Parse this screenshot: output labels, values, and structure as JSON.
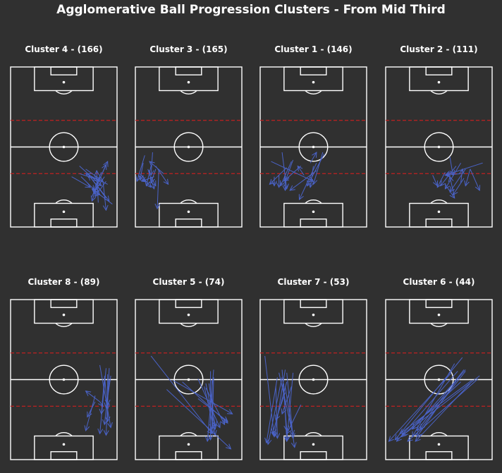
{
  "title": "Agglomerative Ball Progression Clusters - From Mid Third",
  "colors": {
    "background": "#303030",
    "pitch_lines": "#ffffff",
    "third_lines": "#b22222",
    "arrows": "#4a63c8"
  },
  "chart_data": {
    "type": "pitch-arrow-clusters",
    "note_units": "pitch coordinates: x across width 0-68, y along length 0-105 (0 = bottom goal line, 105 = top goal line)",
    "panels": [
      {
        "title": "Cluster 4 - (166)",
        "arrows": [
          [
            52,
            20,
            62,
            43
          ],
          [
            45,
            33,
            57,
            21
          ],
          [
            61,
            30,
            54,
            20
          ],
          [
            58,
            36,
            53,
            24
          ],
          [
            57,
            33,
            52,
            17
          ],
          [
            60,
            33,
            53,
            22
          ],
          [
            39,
            33,
            51,
            26
          ],
          [
            50,
            34,
            63,
            17
          ],
          [
            48,
            38,
            59,
            30
          ],
          [
            62,
            28,
            48,
            35
          ],
          [
            44,
            35,
            56,
            31
          ],
          [
            59,
            30,
            61,
            11
          ],
          [
            44,
            40,
            58,
            27
          ],
          [
            61,
            19,
            50,
            34
          ],
          [
            56,
            16,
            55,
            37
          ],
          [
            65,
            15,
            52,
            25
          ],
          [
            58,
            34,
            61,
            41
          ]
        ]
      },
      {
        "title": "Cluster 3 - (165)",
        "arrows": [
          [
            13,
            38,
            10,
            29
          ],
          [
            15,
            38,
            14,
            12
          ],
          [
            12,
            33,
            4,
            30
          ],
          [
            6,
            47,
            1,
            30
          ],
          [
            3,
            35,
            10,
            26
          ],
          [
            11,
            49,
            10,
            34
          ],
          [
            13,
            40,
            21,
            28
          ],
          [
            10,
            33,
            13,
            27
          ],
          [
            18,
            35,
            9,
            43
          ],
          [
            8,
            38,
            12,
            25
          ],
          [
            2,
            34,
            6,
            30
          ],
          [
            5,
            42,
            3,
            31
          ],
          [
            10,
            40,
            7,
            27
          ]
        ]
      },
      {
        "title": "Cluster 1 - (146)",
        "arrows": [
          [
            14,
            49,
            17,
            25
          ],
          [
            17,
            39,
            6,
            28
          ],
          [
            20,
            43,
            13,
            27
          ],
          [
            36,
            37,
            19,
            24
          ],
          [
            32,
            42,
            36,
            49
          ],
          [
            40,
            49,
            34,
            28
          ],
          [
            26,
            40,
            15,
            30
          ],
          [
            12,
            34,
            12,
            26
          ],
          [
            21,
            44,
            16,
            30
          ],
          [
            41,
            48,
            30,
            27
          ],
          [
            34,
            40,
            32,
            26
          ],
          [
            9,
            33,
            9,
            27
          ],
          [
            16,
            32,
            16,
            24
          ],
          [
            7,
            43,
            34,
            30
          ],
          [
            28,
            34,
            24,
            40
          ],
          [
            36,
            42,
            25,
            18
          ]
        ]
      },
      {
        "title": "Cluster 2 - (111)",
        "arrows": [
          [
            62,
            42,
            38,
            34
          ],
          [
            48,
            42,
            38,
            25
          ],
          [
            51,
            38,
            41,
            23
          ],
          [
            38,
            36,
            33,
            26
          ],
          [
            38,
            28,
            44,
            19
          ],
          [
            45,
            40,
            35,
            27
          ],
          [
            48,
            35,
            38,
            34
          ],
          [
            43,
            24,
            41,
            33
          ],
          [
            50,
            32,
            43,
            21
          ],
          [
            54,
            38,
            51,
            27
          ],
          [
            30,
            34,
            33,
            27
          ],
          [
            48,
            29,
            49,
            38
          ],
          [
            54,
            38,
            60,
            24
          ],
          [
            41,
            46,
            43,
            34
          ]
        ]
      },
      {
        "title": "Cluster 8 - (89)",
        "arrows": [
          [
            57,
            62,
            64,
            21
          ],
          [
            57,
            38,
            48,
            45
          ],
          [
            63,
            60,
            61,
            16
          ],
          [
            62,
            56,
            62,
            25
          ],
          [
            60,
            55,
            62,
            33
          ],
          [
            54,
            38,
            49,
            28
          ],
          [
            61,
            60,
            57,
            17
          ],
          [
            60,
            54,
            58,
            30
          ],
          [
            57,
            38,
            59,
            35
          ],
          [
            62,
            48,
            62,
            36
          ],
          [
            63,
            52,
            60,
            23
          ],
          [
            54,
            42,
            48,
            19
          ],
          [
            64,
            55,
            61,
            34
          ]
        ]
      },
      {
        "title": "Cluster 5 - (74)",
        "arrows": [
          [
            50,
            59,
            46,
            12
          ],
          [
            40,
            40,
            59,
            25
          ],
          [
            45,
            50,
            51,
            20
          ],
          [
            47,
            50,
            51,
            22
          ],
          [
            48,
            58,
            48,
            13
          ],
          [
            24,
            52,
            62,
            30
          ],
          [
            30,
            51,
            59,
            24
          ],
          [
            40,
            53,
            54,
            21
          ],
          [
            20,
            46,
            61,
            7
          ],
          [
            10,
            68,
            49,
            17
          ],
          [
            49,
            52,
            49,
            20
          ],
          [
            45,
            47,
            57,
            23
          ],
          [
            44,
            48,
            51,
            16
          ],
          [
            50,
            54,
            49,
            17
          ]
        ]
      },
      {
        "title": "Cluster 7 - (53)",
        "arrows": [
          [
            15,
            50,
            17,
            12
          ],
          [
            20,
            48,
            14,
            30
          ],
          [
            10,
            48,
            11,
            14
          ],
          [
            11,
            54,
            4,
            11
          ],
          [
            16,
            59,
            9,
            15
          ],
          [
            14,
            59,
            17,
            19
          ],
          [
            17,
            57,
            21,
            14
          ],
          [
            21,
            57,
            17,
            12
          ],
          [
            26,
            36,
            17,
            17
          ],
          [
            17,
            51,
            8,
            17
          ],
          [
            3,
            68,
            9,
            15
          ],
          [
            16,
            44,
            10,
            26
          ],
          [
            14,
            54,
            5,
            10
          ],
          [
            12,
            57,
            21,
            16
          ],
          [
            16,
            48,
            22,
            8
          ]
        ]
      },
      {
        "title": "Cluster 6 - (44)",
        "arrows": [
          [
            49,
            67,
            6,
            13
          ],
          [
            60,
            55,
            11,
            16
          ],
          [
            55,
            52,
            9,
            17
          ],
          [
            51,
            59,
            17,
            20
          ],
          [
            46,
            58,
            7,
            12
          ],
          [
            48,
            51,
            10,
            15
          ],
          [
            42,
            57,
            2,
            12
          ],
          [
            44,
            63,
            17,
            15
          ],
          [
            50,
            59,
            20,
            19
          ],
          [
            51,
            58,
            22,
            20
          ],
          [
            54,
            50,
            19,
            12
          ],
          [
            59,
            53,
            14,
            12
          ],
          [
            48,
            56,
            20,
            15
          ]
        ]
      }
    ]
  }
}
